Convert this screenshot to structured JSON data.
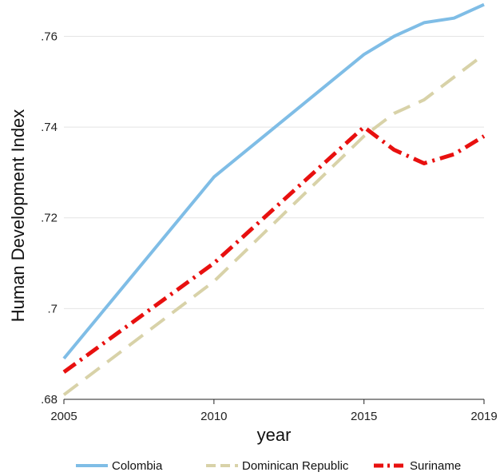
{
  "chart_data": {
    "type": "line",
    "title": "",
    "xlabel": "year",
    "ylabel": "Human Development Index",
    "xlim": [
      2005,
      2019
    ],
    "ylim": [
      0.68,
      0.768
    ],
    "x_ticks": [
      2005,
      2010,
      2015,
      2019
    ],
    "x_tick_labels": [
      "2005",
      "2010",
      "2015",
      "2019"
    ],
    "y_ticks": [
      0.68,
      0.7,
      0.72,
      0.74,
      0.76
    ],
    "y_tick_labels": [
      ".68",
      ".7",
      ".72",
      ".74",
      ".76"
    ],
    "grid": "horizontal",
    "legend_position": "bottom",
    "series": [
      {
        "name": "Colombia",
        "color": "#7fbde6",
        "style": "solid",
        "x": [
          2005,
          2010,
          2015,
          2016,
          2017,
          2018,
          2019
        ],
        "values": [
          0.689,
          0.729,
          0.756,
          0.76,
          0.763,
          0.764,
          0.767
        ]
      },
      {
        "name": "Dominican Republic",
        "color": "#d8d2a8",
        "style": "dashed",
        "x": [
          2005,
          2010,
          2015,
          2016,
          2017,
          2018,
          2019
        ],
        "values": [
          0.681,
          0.706,
          0.738,
          0.743,
          0.746,
          0.751,
          0.756
        ]
      },
      {
        "name": "Suriname",
        "color": "#e8100f",
        "style": "dashdot",
        "x": [
          2005,
          2010,
          2015,
          2016,
          2017,
          2018,
          2019
        ],
        "values": [
          0.686,
          0.71,
          0.74,
          0.735,
          0.732,
          0.734,
          0.738
        ]
      }
    ]
  }
}
